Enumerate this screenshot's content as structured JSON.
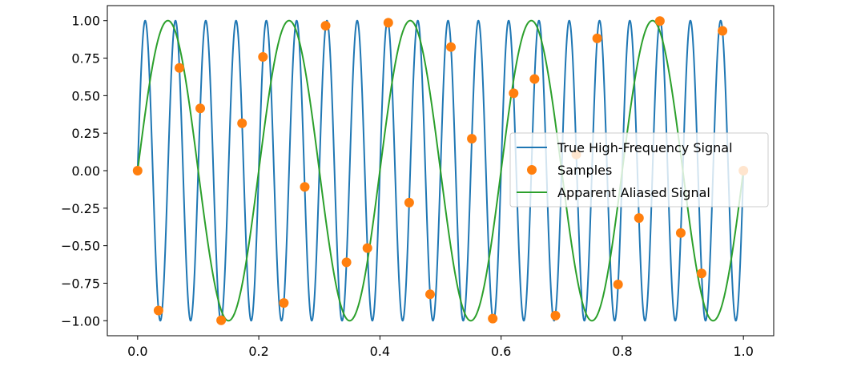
{
  "chart_data": {
    "type": "line",
    "xlim": [
      -0.05,
      1.05
    ],
    "ylim": [
      -1.1,
      1.1
    ],
    "x_ticks": [
      {
        "value": 0.0,
        "label": "0.0"
      },
      {
        "value": 0.2,
        "label": "0.2"
      },
      {
        "value": 0.4,
        "label": "0.4"
      },
      {
        "value": 0.6,
        "label": "0.6"
      },
      {
        "value": 0.8,
        "label": "0.8"
      },
      {
        "value": 1.0,
        "label": "1.0"
      }
    ],
    "y_ticks": [
      {
        "value": 1.0,
        "label": "1.00"
      },
      {
        "value": 0.75,
        "label": "0.75"
      },
      {
        "value": 0.5,
        "label": "0.50"
      },
      {
        "value": 0.25,
        "label": "0.25"
      },
      {
        "value": 0.0,
        "label": "0.00"
      },
      {
        "value": -0.25,
        "label": "−0.25"
      },
      {
        "value": -0.5,
        "label": "−0.50"
      },
      {
        "value": -0.75,
        "label": "−0.75"
      },
      {
        "value": -1.0,
        "label": "−1.00"
      }
    ],
    "grid": false,
    "legend_position": "center-right",
    "series": [
      {
        "name": "True High-Frequency Signal",
        "kind": "line",
        "color": "#1f77b4",
        "function": "sin(2*pi*f*t)",
        "frequency": 20,
        "x_range": [
          0,
          1
        ]
      },
      {
        "name": "Samples",
        "kind": "scatter",
        "color": "#ff7f0e",
        "x": [
          0.0,
          0.0345,
          0.069,
          0.1034,
          0.1379,
          0.1724,
          0.2069,
          0.2414,
          0.2759,
          0.3103,
          0.3448,
          0.3793,
          0.4138,
          0.4483,
          0.4828,
          0.5172,
          0.5517,
          0.5862,
          0.6207,
          0.6552,
          0.6897,
          0.7241,
          0.7586,
          0.7931,
          0.8276,
          0.8621,
          0.8966,
          0.931,
          0.9655,
          1.0
        ],
        "y": [
          0.0,
          -0.932,
          0.685,
          0.415,
          -0.997,
          0.316,
          0.758,
          -0.882,
          -0.108,
          0.966,
          -0.611,
          -0.516,
          0.986,
          -0.213,
          -0.824,
          0.824,
          0.213,
          -0.986,
          0.516,
          0.611,
          -0.966,
          0.108,
          0.882,
          -0.758,
          -0.316,
          0.997,
          -0.415,
          -0.685,
          0.932,
          0.0
        ]
      },
      {
        "name": "Apparent Aliased Signal",
        "kind": "line",
        "color": "#2ca02c",
        "function": "sin(2*pi*f*t)",
        "frequency": 5,
        "x_range": [
          0,
          1
        ]
      }
    ]
  }
}
